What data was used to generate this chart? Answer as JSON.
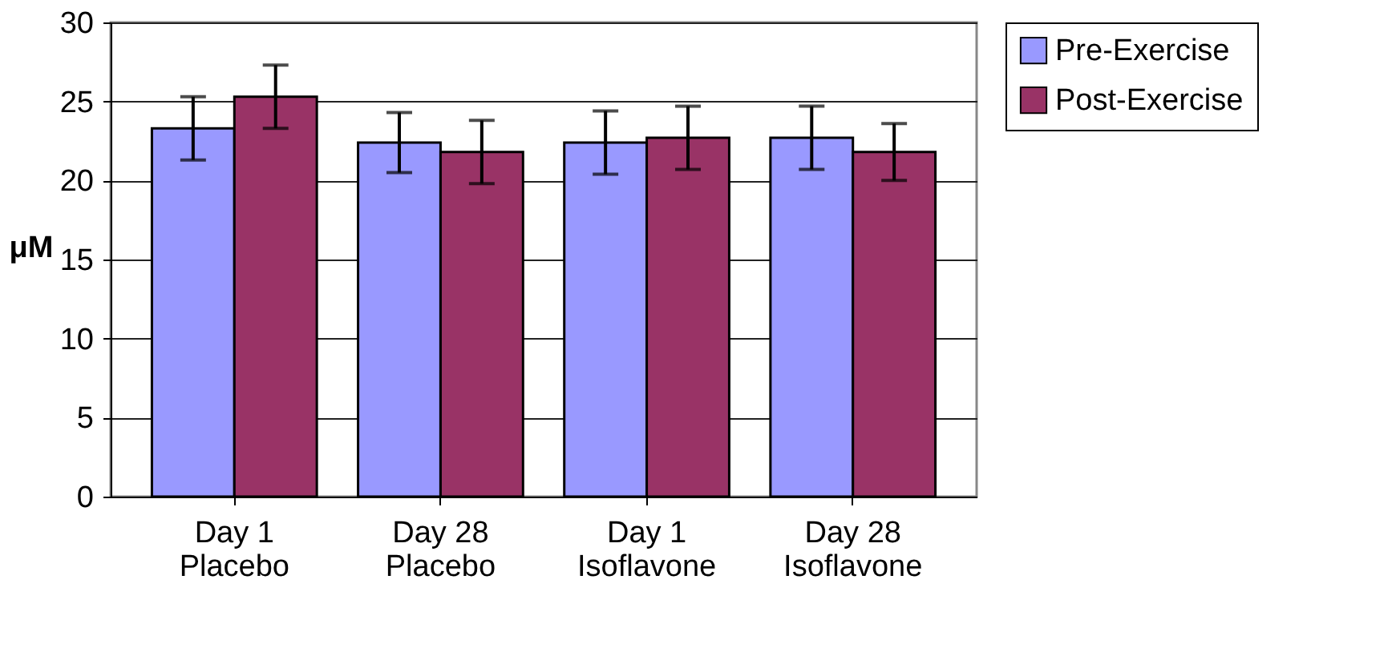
{
  "chart_data": {
    "type": "bar",
    "ylabel": "μM",
    "categories": [
      "Day 1\nPlacebo",
      "Day 28\nPlacebo",
      "Day 1\nIsoflavone",
      "Day 28\nIsoflavone"
    ],
    "series": [
      {
        "name": "Pre-Exercise",
        "color": "#9999ff",
        "values": [
          23.3,
          22.4,
          22.4,
          22.7
        ],
        "errors": [
          2.0,
          1.9,
          2.0,
          2.0
        ]
      },
      {
        "name": "Post-Exercise",
        "color": "#993366",
        "values": [
          25.3,
          21.8,
          22.7,
          21.8
        ],
        "errors": [
          2.0,
          2.0,
          2.0,
          1.8
        ]
      }
    ],
    "ylim": [
      0,
      30
    ],
    "yticks": [
      0,
      5,
      10,
      15,
      20,
      25,
      30
    ],
    "grid": "y",
    "legend": "right"
  }
}
